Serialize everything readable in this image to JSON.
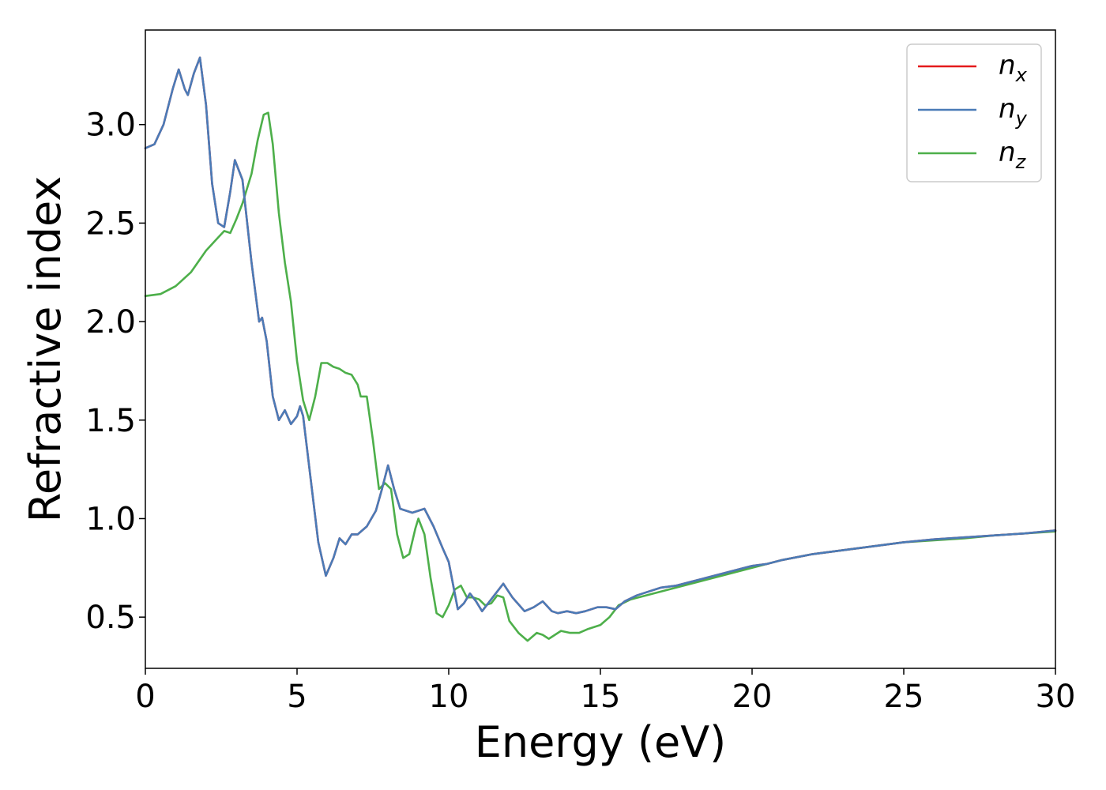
{
  "chart_data": {
    "type": "line",
    "title": "",
    "xlabel": "Energy (eV)",
    "ylabel": "Refractive index",
    "xlim": [
      0,
      30
    ],
    "ylim": [
      0.24,
      3.48
    ],
    "xticks": [
      0,
      5,
      10,
      15,
      20,
      25,
      30
    ],
    "xtick_labels": [
      "0",
      "5",
      "10",
      "15",
      "20",
      "25",
      "30"
    ],
    "yticks": [
      0.5,
      1.0,
      1.5,
      2.0,
      2.5,
      3.0
    ],
    "ytick_labels": [
      "0.5",
      "1.0",
      "1.5",
      "2.0",
      "2.5",
      "3.0"
    ],
    "grid": false,
    "legend_position": "top-right",
    "series": [
      {
        "name": "n",
        "subscript": "x",
        "color": "#e41a1c",
        "points": [
          [
            0,
            2.88
          ],
          [
            0.3,
            2.9
          ],
          [
            0.6,
            3.0
          ],
          [
            0.9,
            3.18
          ],
          [
            1.1,
            3.28
          ],
          [
            1.3,
            3.18
          ],
          [
            1.4,
            3.15
          ],
          [
            1.6,
            3.26
          ],
          [
            1.8,
            3.34
          ],
          [
            2.0,
            3.1
          ],
          [
            2.2,
            2.7
          ],
          [
            2.4,
            2.5
          ],
          [
            2.6,
            2.48
          ],
          [
            2.8,
            2.66
          ],
          [
            2.95,
            2.82
          ],
          [
            3.2,
            2.72
          ],
          [
            3.5,
            2.3
          ],
          [
            3.75,
            2.0
          ],
          [
            3.85,
            2.02
          ],
          [
            4.0,
            1.9
          ],
          [
            4.2,
            1.62
          ],
          [
            4.4,
            1.5
          ],
          [
            4.6,
            1.55
          ],
          [
            4.8,
            1.48
          ],
          [
            5.0,
            1.52
          ],
          [
            5.1,
            1.57
          ],
          [
            5.2,
            1.52
          ],
          [
            5.45,
            1.2
          ],
          [
            5.7,
            0.88
          ],
          [
            5.95,
            0.71
          ],
          [
            6.2,
            0.8
          ],
          [
            6.4,
            0.9
          ],
          [
            6.6,
            0.87
          ],
          [
            6.8,
            0.92
          ],
          [
            7.0,
            0.92
          ],
          [
            7.3,
            0.96
          ],
          [
            7.6,
            1.04
          ],
          [
            7.8,
            1.15
          ],
          [
            8.0,
            1.27
          ],
          [
            8.2,
            1.15
          ],
          [
            8.4,
            1.05
          ],
          [
            8.6,
            1.04
          ],
          [
            8.8,
            1.03
          ],
          [
            9.0,
            1.04
          ],
          [
            9.2,
            1.05
          ],
          [
            9.5,
            0.96
          ],
          [
            9.8,
            0.85
          ],
          [
            10.0,
            0.78
          ],
          [
            10.3,
            0.54
          ],
          [
            10.5,
            0.57
          ],
          [
            10.7,
            0.62
          ],
          [
            10.9,
            0.58
          ],
          [
            11.1,
            0.53
          ],
          [
            11.3,
            0.57
          ],
          [
            11.5,
            0.61
          ],
          [
            11.8,
            0.67
          ],
          [
            12.1,
            0.6
          ],
          [
            12.5,
            0.53
          ],
          [
            12.8,
            0.55
          ],
          [
            13.1,
            0.58
          ],
          [
            13.4,
            0.53
          ],
          [
            13.6,
            0.52
          ],
          [
            13.9,
            0.53
          ],
          [
            14.2,
            0.52
          ],
          [
            14.5,
            0.53
          ],
          [
            14.9,
            0.55
          ],
          [
            15.2,
            0.55
          ],
          [
            15.5,
            0.54
          ],
          [
            15.8,
            0.58
          ],
          [
            16.2,
            0.61
          ],
          [
            16.6,
            0.63
          ],
          [
            17.0,
            0.65
          ],
          [
            17.5,
            0.66
          ],
          [
            18.0,
            0.68
          ],
          [
            18.5,
            0.7
          ],
          [
            19.0,
            0.72
          ],
          [
            19.5,
            0.74
          ],
          [
            20.0,
            0.76
          ],
          [
            20.5,
            0.77
          ],
          [
            21.0,
            0.79
          ],
          [
            22.0,
            0.82
          ],
          [
            23.0,
            0.84
          ],
          [
            24.0,
            0.86
          ],
          [
            25.0,
            0.88
          ],
          [
            26.0,
            0.895
          ],
          [
            27.0,
            0.905
          ],
          [
            28.0,
            0.915
          ],
          [
            29.0,
            0.925
          ],
          [
            30.0,
            0.94
          ]
        ]
      },
      {
        "name": "n",
        "subscript": "y",
        "color": "#4a7bb7",
        "points": [
          [
            0,
            2.88
          ],
          [
            0.3,
            2.9
          ],
          [
            0.6,
            3.0
          ],
          [
            0.9,
            3.18
          ],
          [
            1.1,
            3.28
          ],
          [
            1.3,
            3.18
          ],
          [
            1.4,
            3.15
          ],
          [
            1.6,
            3.26
          ],
          [
            1.8,
            3.34
          ],
          [
            2.0,
            3.1
          ],
          [
            2.2,
            2.7
          ],
          [
            2.4,
            2.5
          ],
          [
            2.6,
            2.48
          ],
          [
            2.8,
            2.66
          ],
          [
            2.95,
            2.82
          ],
          [
            3.2,
            2.72
          ],
          [
            3.5,
            2.3
          ],
          [
            3.75,
            2.0
          ],
          [
            3.85,
            2.02
          ],
          [
            4.0,
            1.9
          ],
          [
            4.2,
            1.62
          ],
          [
            4.4,
            1.5
          ],
          [
            4.6,
            1.55
          ],
          [
            4.8,
            1.48
          ],
          [
            5.0,
            1.52
          ],
          [
            5.1,
            1.57
          ],
          [
            5.2,
            1.52
          ],
          [
            5.45,
            1.2
          ],
          [
            5.7,
            0.88
          ],
          [
            5.95,
            0.71
          ],
          [
            6.2,
            0.8
          ],
          [
            6.4,
            0.9
          ],
          [
            6.6,
            0.87
          ],
          [
            6.8,
            0.92
          ],
          [
            7.0,
            0.92
          ],
          [
            7.3,
            0.96
          ],
          [
            7.6,
            1.04
          ],
          [
            7.8,
            1.15
          ],
          [
            8.0,
            1.27
          ],
          [
            8.2,
            1.15
          ],
          [
            8.4,
            1.05
          ],
          [
            8.6,
            1.04
          ],
          [
            8.8,
            1.03
          ],
          [
            9.0,
            1.04
          ],
          [
            9.2,
            1.05
          ],
          [
            9.5,
            0.96
          ],
          [
            9.8,
            0.85
          ],
          [
            10.0,
            0.78
          ],
          [
            10.3,
            0.54
          ],
          [
            10.5,
            0.57
          ],
          [
            10.7,
            0.62
          ],
          [
            10.9,
            0.58
          ],
          [
            11.1,
            0.53
          ],
          [
            11.3,
            0.57
          ],
          [
            11.5,
            0.61
          ],
          [
            11.8,
            0.67
          ],
          [
            12.1,
            0.6
          ],
          [
            12.5,
            0.53
          ],
          [
            12.8,
            0.55
          ],
          [
            13.1,
            0.58
          ],
          [
            13.4,
            0.53
          ],
          [
            13.6,
            0.52
          ],
          [
            13.9,
            0.53
          ],
          [
            14.2,
            0.52
          ],
          [
            14.5,
            0.53
          ],
          [
            14.9,
            0.55
          ],
          [
            15.2,
            0.55
          ],
          [
            15.5,
            0.54
          ],
          [
            15.8,
            0.58
          ],
          [
            16.2,
            0.61
          ],
          [
            16.6,
            0.63
          ],
          [
            17.0,
            0.65
          ],
          [
            17.5,
            0.66
          ],
          [
            18.0,
            0.68
          ],
          [
            18.5,
            0.7
          ],
          [
            19.0,
            0.72
          ],
          [
            19.5,
            0.74
          ],
          [
            20.0,
            0.76
          ],
          [
            20.5,
            0.77
          ],
          [
            21.0,
            0.79
          ],
          [
            22.0,
            0.82
          ],
          [
            23.0,
            0.84
          ],
          [
            24.0,
            0.86
          ],
          [
            25.0,
            0.88
          ],
          [
            26.0,
            0.895
          ],
          [
            27.0,
            0.905
          ],
          [
            28.0,
            0.915
          ],
          [
            29.0,
            0.925
          ],
          [
            30.0,
            0.94
          ]
        ]
      },
      {
        "name": "n",
        "subscript": "z",
        "color": "#4daf4a",
        "points": [
          [
            0,
            2.13
          ],
          [
            0.5,
            2.14
          ],
          [
            1.0,
            2.18
          ],
          [
            1.5,
            2.25
          ],
          [
            2.0,
            2.36
          ],
          [
            2.3,
            2.41
          ],
          [
            2.6,
            2.46
          ],
          [
            2.8,
            2.45
          ],
          [
            3.0,
            2.52
          ],
          [
            3.2,
            2.6
          ],
          [
            3.5,
            2.75
          ],
          [
            3.7,
            2.92
          ],
          [
            3.9,
            3.05
          ],
          [
            4.05,
            3.06
          ],
          [
            4.2,
            2.9
          ],
          [
            4.4,
            2.55
          ],
          [
            4.6,
            2.3
          ],
          [
            4.8,
            2.1
          ],
          [
            5.0,
            1.8
          ],
          [
            5.2,
            1.6
          ],
          [
            5.4,
            1.5
          ],
          [
            5.6,
            1.62
          ],
          [
            5.8,
            1.79
          ],
          [
            6.0,
            1.79
          ],
          [
            6.2,
            1.77
          ],
          [
            6.4,
            1.76
          ],
          [
            6.6,
            1.74
          ],
          [
            6.8,
            1.73
          ],
          [
            7.0,
            1.68
          ],
          [
            7.1,
            1.62
          ],
          [
            7.3,
            1.62
          ],
          [
            7.5,
            1.4
          ],
          [
            7.7,
            1.15
          ],
          [
            7.9,
            1.18
          ],
          [
            8.1,
            1.15
          ],
          [
            8.3,
            0.92
          ],
          [
            8.5,
            0.8
          ],
          [
            8.7,
            0.82
          ],
          [
            8.9,
            0.95
          ],
          [
            9.0,
            1.0
          ],
          [
            9.2,
            0.92
          ],
          [
            9.4,
            0.7
          ],
          [
            9.6,
            0.52
          ],
          [
            9.8,
            0.5
          ],
          [
            10.0,
            0.56
          ],
          [
            10.2,
            0.64
          ],
          [
            10.4,
            0.66
          ],
          [
            10.6,
            0.6
          ],
          [
            10.8,
            0.6
          ],
          [
            11.0,
            0.59
          ],
          [
            11.2,
            0.56
          ],
          [
            11.4,
            0.57
          ],
          [
            11.6,
            0.61
          ],
          [
            11.8,
            0.6
          ],
          [
            12.0,
            0.48
          ],
          [
            12.3,
            0.42
          ],
          [
            12.6,
            0.38
          ],
          [
            12.9,
            0.42
          ],
          [
            13.1,
            0.41
          ],
          [
            13.3,
            0.39
          ],
          [
            13.5,
            0.41
          ],
          [
            13.7,
            0.43
          ],
          [
            14.0,
            0.42
          ],
          [
            14.3,
            0.42
          ],
          [
            14.6,
            0.44
          ],
          [
            15.0,
            0.46
          ],
          [
            15.3,
            0.5
          ],
          [
            15.6,
            0.56
          ],
          [
            16.0,
            0.59
          ],
          [
            16.5,
            0.61
          ],
          [
            17.0,
            0.63
          ],
          [
            17.5,
            0.65
          ],
          [
            18.0,
            0.67
          ],
          [
            18.5,
            0.69
          ],
          [
            19.0,
            0.71
          ],
          [
            19.5,
            0.73
          ],
          [
            20.0,
            0.75
          ],
          [
            20.5,
            0.77
          ],
          [
            21.0,
            0.79
          ],
          [
            22.0,
            0.82
          ],
          [
            23.0,
            0.84
          ],
          [
            24.0,
            0.86
          ],
          [
            25.0,
            0.88
          ],
          [
            26.0,
            0.89
          ],
          [
            27.0,
            0.9
          ],
          [
            28.0,
            0.915
          ],
          [
            29.0,
            0.925
          ],
          [
            30.0,
            0.935
          ]
        ]
      }
    ]
  }
}
